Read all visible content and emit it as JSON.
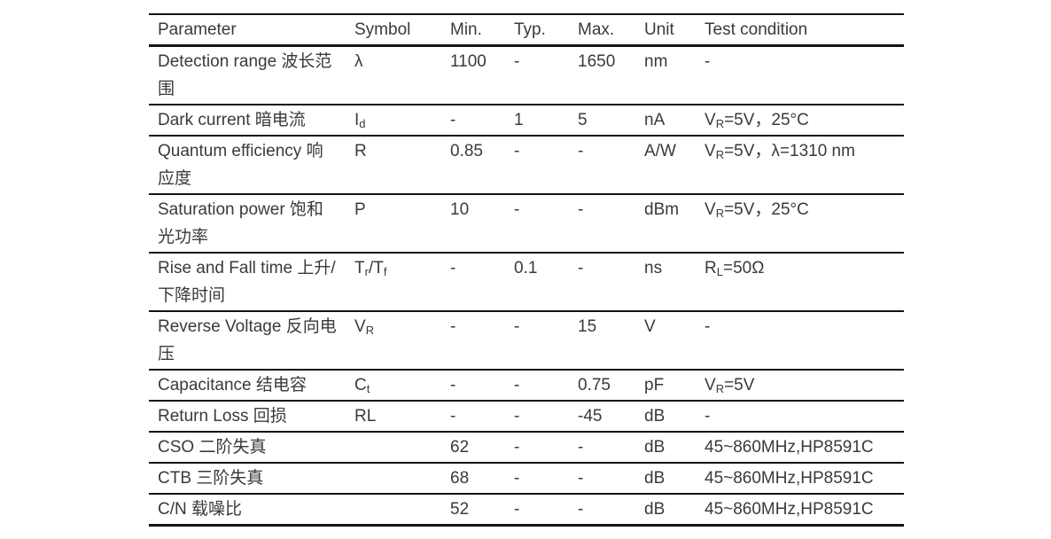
{
  "page": {
    "background": "#ffffff",
    "text_color": "#3a3a3a",
    "rule_color": "#141414"
  },
  "spec_table": {
    "columns": [
      "Parameter",
      "Symbol",
      "Min.",
      "Typ.",
      "Max.",
      "Unit",
      "Test condition"
    ],
    "rows": [
      {
        "parameter": "Detection range 波长范围",
        "symbol_html": "λ",
        "min": "1100",
        "typ": "-",
        "max": "1650",
        "unit": "nm",
        "test_condition_html": "-"
      },
      {
        "parameter": "Dark current 暗电流",
        "symbol_html": "I<sub>d</sub>",
        "min": "-",
        "typ": "1",
        "max": "5",
        "unit": "nA",
        "test_condition_html": "V<sub>R</sub>=5V，25°C"
      },
      {
        "parameter": "Quantum efficiency 响应度",
        "symbol_html": "R",
        "min": "0.85",
        "typ": "-",
        "max": "-",
        "unit": "A/W",
        "test_condition_html": "V<sub>R</sub>=5V，λ=1310 nm"
      },
      {
        "parameter": "Saturation power 饱和光功率",
        "symbol_html": "P",
        "min": "10",
        "typ": "-",
        "max": "-",
        "unit": "dBm",
        "test_condition_html": "V<sub>R</sub>=5V，25°C"
      },
      {
        "parameter": "Rise and Fall time 上升/下降时间",
        "symbol_html": "T<sub>r</sub>/T<sub>f</sub>",
        "min": "-",
        "typ": "0.1",
        "max": "-",
        "unit": "ns",
        "test_condition_html": "R<sub>L</sub>=50Ω"
      },
      {
        "parameter": "Reverse Voltage 反向电压",
        "symbol_html": "V<sub>R</sub>",
        "min": "-",
        "typ": "-",
        "max": "15",
        "unit": "V",
        "test_condition_html": "-"
      },
      {
        "parameter": "Capacitance 结电容",
        "symbol_html": "C<sub>t</sub>",
        "min": "-",
        "typ": "-",
        "max": "0.75",
        "unit": "pF",
        "test_condition_html": "V<sub>R</sub>=5V"
      },
      {
        "parameter": "Return Loss 回损",
        "symbol_html": "RL",
        "min": "-",
        "typ": "-",
        "max": "-45",
        "unit": "dB",
        "test_condition_html": "-"
      },
      {
        "parameter": "CSO 二阶失真",
        "symbol_html": "",
        "min": "62",
        "typ": "-",
        "max": "-",
        "unit": "dB",
        "test_condition_html": "45~860MHz,HP8591C"
      },
      {
        "parameter": "CTB 三阶失真",
        "symbol_html": "",
        "min": "68",
        "typ": "-",
        "max": "-",
        "unit": "dB",
        "test_condition_html": "45~860MHz,HP8591C"
      },
      {
        "parameter": "C/N 载噪比",
        "symbol_html": "",
        "min": "52",
        "typ": "-",
        "max": "-",
        "unit": "dB",
        "test_condition_html": "45~860MHz,HP8591C"
      }
    ]
  }
}
